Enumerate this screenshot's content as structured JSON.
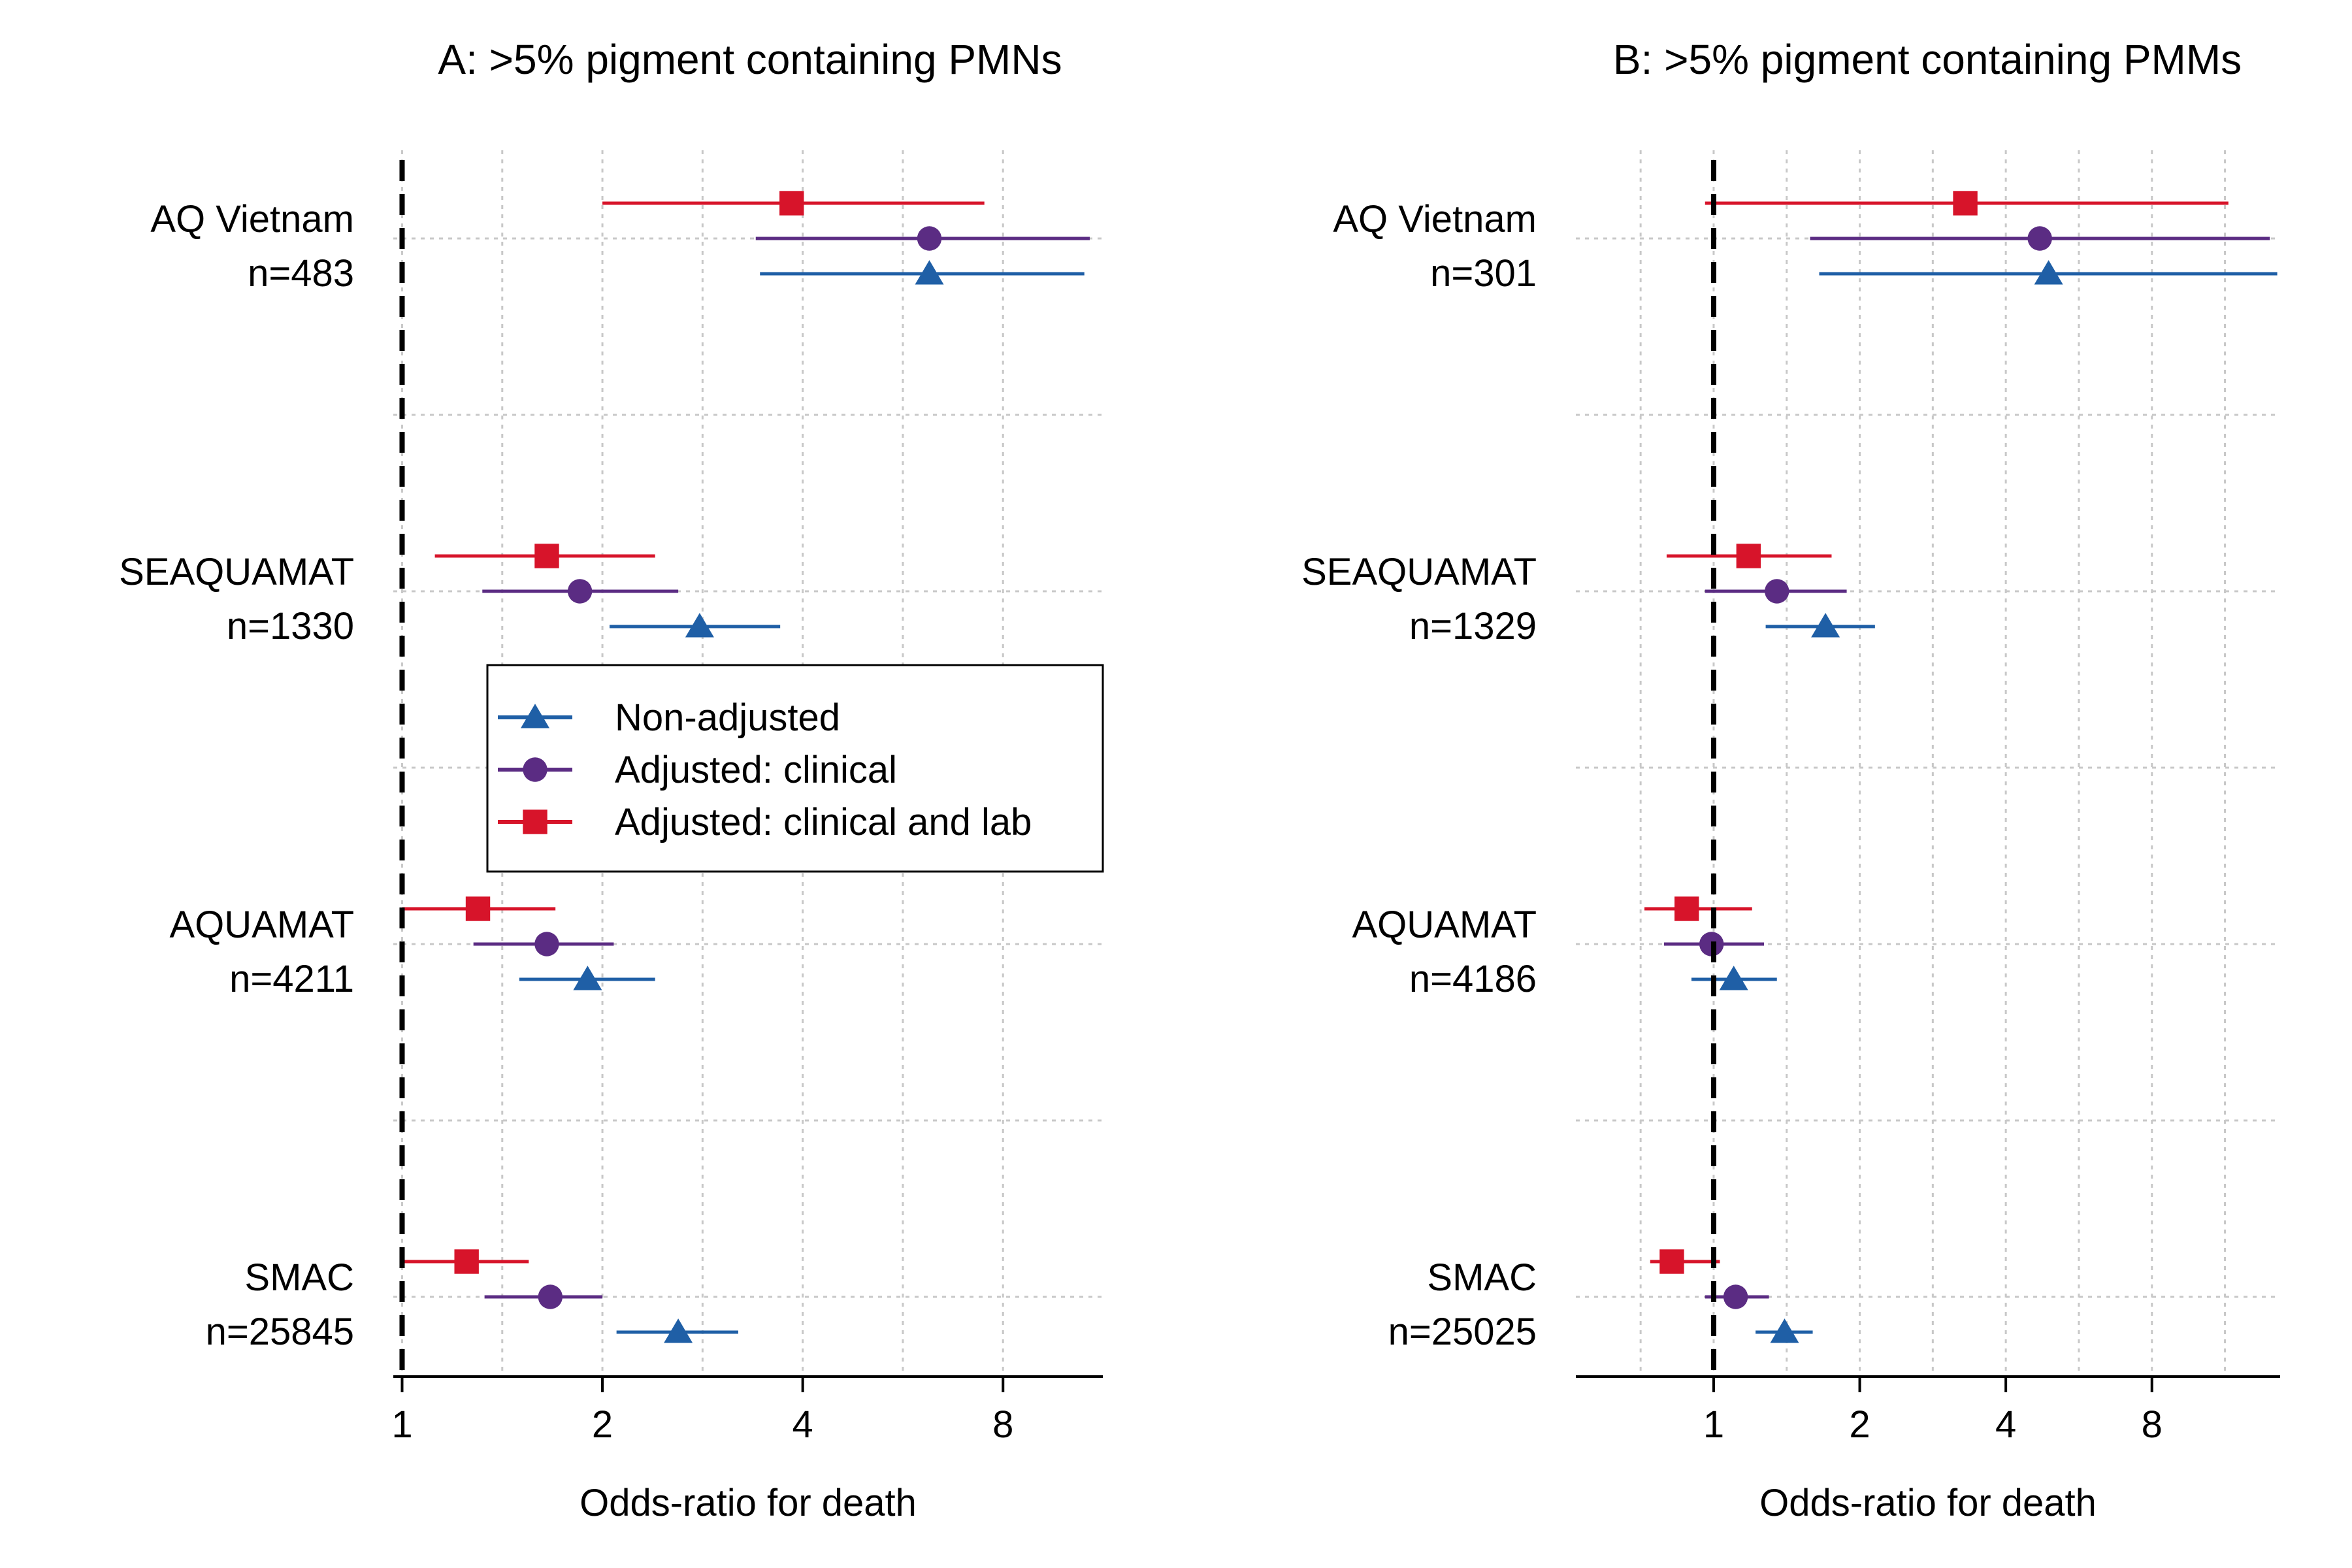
{
  "chart_data": [
    {
      "type": "forest",
      "title": "A: >5% pigment containing PMNs",
      "xlabel": "Odds-ratio for death",
      "x_scale": "log2",
      "xlim": [
        0.97,
        11.3
      ],
      "x_ticks": [
        1,
        2,
        4,
        8
      ],
      "reference_line": 1,
      "legend": {
        "placement": "center-left",
        "entries": [
          "Non-adjusted",
          "Adjusted: clinical",
          "Adjusted: clinical and lab"
        ]
      },
      "grid": true,
      "studies": [
        {
          "name": "AQ Vietnam",
          "n_label": "n=483"
        },
        {
          "name": "SEAQUAMAT",
          "n_label": "n=1330"
        },
        {
          "name": "AQUAMAT",
          "n_label": "n=4211"
        },
        {
          "name": "SMAC",
          "n_label": "n=25845"
        }
      ],
      "series": [
        {
          "name": "Non-adjusted",
          "color": "#1f5fa6",
          "marker": "triangle",
          "estimates": [
            {
              "or": 6.2,
              "lo": 3.45,
              "hi": 10.6
            },
            {
              "or": 2.8,
              "lo": 2.05,
              "hi": 3.7
            },
            {
              "or": 1.9,
              "lo": 1.5,
              "hi": 2.4
            },
            {
              "or": 2.6,
              "lo": 2.1,
              "hi": 3.2
            }
          ]
        },
        {
          "name": "Adjusted: clinical",
          "color": "#5b2c83",
          "marker": "circle",
          "estimates": [
            {
              "or": 6.2,
              "lo": 3.4,
              "hi": 10.8
            },
            {
              "or": 1.85,
              "lo": 1.32,
              "hi": 2.6
            },
            {
              "or": 1.65,
              "lo": 1.28,
              "hi": 2.08
            },
            {
              "or": 1.67,
              "lo": 1.33,
              "hi": 2.0
            }
          ]
        },
        {
          "name": "Adjusted: clinical and lab",
          "color": "#d7142a",
          "marker": "square",
          "estimates": [
            {
              "or": 3.85,
              "lo": 2.0,
              "hi": 7.5
            },
            {
              "or": 1.65,
              "lo": 1.12,
              "hi": 2.4
            },
            {
              "or": 1.3,
              "lo": 1.0,
              "hi": 1.7
            },
            {
              "or": 1.25,
              "lo": 1.0,
              "hi": 1.55
            }
          ]
        }
      ]
    },
    {
      "type": "forest",
      "title": "B: >5% pigment containing PMMs",
      "xlabel": "Odds-ratio for death",
      "x_scale": "log2",
      "xlim": [
        0.52,
        14.7
      ],
      "x_ticks": [
        1,
        2,
        4,
        8
      ],
      "reference_line": 1,
      "grid": true,
      "studies": [
        {
          "name": "AQ Vietnam",
          "n_label": "n=301"
        },
        {
          "name": "SEAQUAMAT",
          "n_label": "n=1329"
        },
        {
          "name": "AQUAMAT",
          "n_label": "n=4186"
        },
        {
          "name": "SMAC",
          "n_label": "n=25025"
        }
      ],
      "series": [
        {
          "name": "Non-adjusted",
          "color": "#1f5fa6",
          "marker": "triangle",
          "estimates": [
            {
              "or": 4.9,
              "lo": 1.65,
              "hi": 14.5
            },
            {
              "or": 1.7,
              "lo": 1.28,
              "hi": 2.15
            },
            {
              "or": 1.1,
              "lo": 0.9,
              "hi": 1.35
            },
            {
              "or": 1.4,
              "lo": 1.22,
              "hi": 1.6
            }
          ]
        },
        {
          "name": "Adjusted: clinical",
          "color": "#5b2c83",
          "marker": "circle",
          "estimates": [
            {
              "or": 4.7,
              "lo": 1.58,
              "hi": 14.0
            },
            {
              "or": 1.35,
              "lo": 0.96,
              "hi": 1.88
            },
            {
              "or": 0.99,
              "lo": 0.79,
              "hi": 1.27
            },
            {
              "or": 1.11,
              "lo": 0.96,
              "hi": 1.3
            }
          ]
        },
        {
          "name": "Adjusted: clinical and lab",
          "color": "#d7142a",
          "marker": "square",
          "estimates": [
            {
              "or": 3.3,
              "lo": 0.96,
              "hi": 11.5
            },
            {
              "or": 1.18,
              "lo": 0.8,
              "hi": 1.75
            },
            {
              "or": 0.88,
              "lo": 0.72,
              "hi": 1.2
            },
            {
              "or": 0.82,
              "lo": 0.74,
              "hi": 1.03
            }
          ]
        }
      ]
    }
  ]
}
